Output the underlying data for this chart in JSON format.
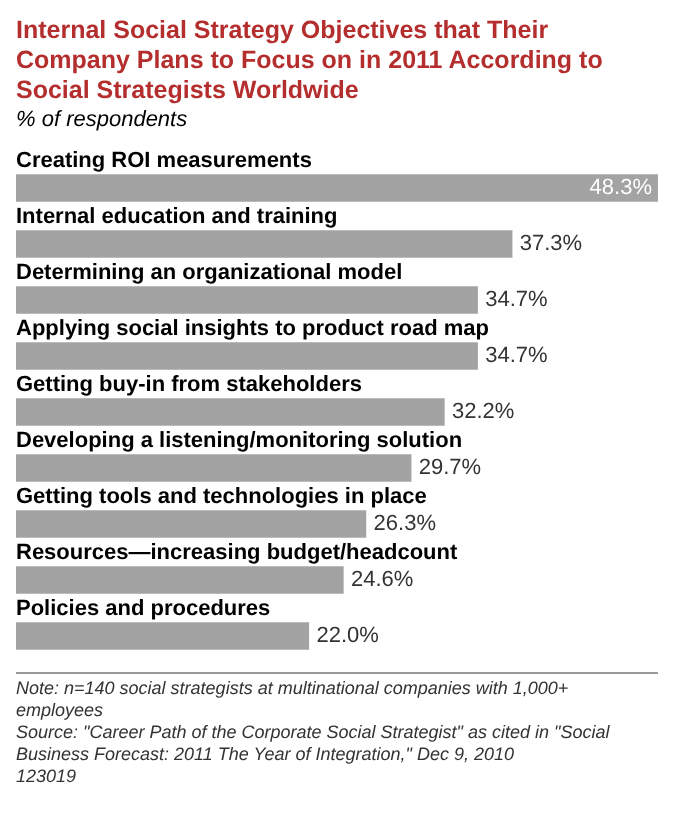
{
  "chart_data": {
    "type": "bar",
    "orientation": "horizontal",
    "title": "Internal Social Strategy Objectives that Their Company Plans to Focus on in 2011 According to Social Strategists Worldwide",
    "subtitle": "% of respondents",
    "categories": [
      "Creating ROI measurements",
      "Internal education and training",
      "Determining an organizational model",
      "Applying social insights to product road map",
      "Getting buy-in from stakeholders",
      "Developing a listening/monitoring solution",
      "Getting tools and technologies in place",
      "Resources—increasing budget/headcount",
      "Policies and procedures"
    ],
    "values": [
      48.3,
      37.3,
      34.7,
      34.7,
      32.2,
      29.7,
      26.3,
      24.6,
      22.0
    ],
    "value_labels": [
      "48.3%",
      "37.3%",
      "34.7%",
      "34.7%",
      "32.2%",
      "29.7%",
      "26.3%",
      "24.6%",
      "22.0%"
    ],
    "color": "#a3a3a3",
    "legend": false,
    "annotations": [
      "Note: n=140 social strategists at multinational companies with 1,000+ employees",
      "Source: \"Career Path of the Corporate Social Strategist\" as cited in \"Social Business Forecast: 2011 The Year of Integration,\" Dec 9, 2010",
      "123019"
    ]
  }
}
